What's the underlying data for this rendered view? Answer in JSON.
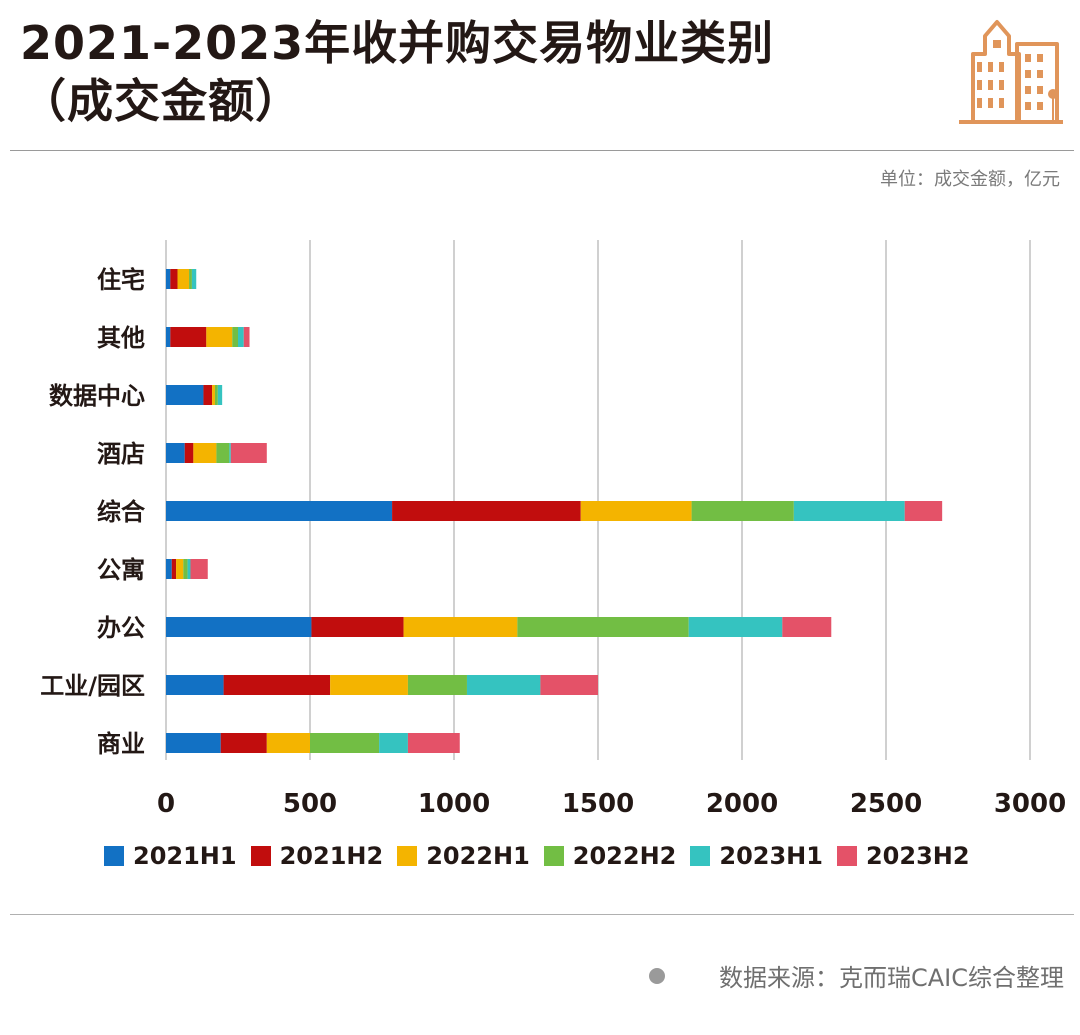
{
  "header": {
    "title_line1": "2021-2023年收并购交易物业类别",
    "title_line2": "（成交金额）",
    "unit": "单位：成交金额，亿元"
  },
  "footer": {
    "source": "数据来源：克而瑞CAIC综合整理"
  },
  "colors": {
    "accent": "#E0955A",
    "gridline": "#D0D0D0"
  },
  "chart_data": {
    "type": "bar",
    "orientation": "horizontal",
    "stacked": true,
    "title": "2021-2023年收并购交易物业类别（成交金额）",
    "xlabel": "",
    "ylabel": "",
    "xlim": [
      0,
      3000
    ],
    "xticks": [
      0,
      500,
      1000,
      1500,
      2000,
      2500,
      3000
    ],
    "grid": true,
    "legend_position": "bottom",
    "categories": [
      "住宅",
      "其他",
      "数据中心",
      "酒店",
      "综合",
      "公寓",
      "办公",
      "工业/园区",
      "商业"
    ],
    "series": [
      {
        "name": "2021H1",
        "color": "#1271C4",
        "values": [
          15,
          15,
          130,
          65,
          785,
          20,
          505,
          200,
          190
        ]
      },
      {
        "name": "2021H2",
        "color": "#C10D0D",
        "values": [
          25,
          125,
          30,
          30,
          655,
          15,
          320,
          370,
          160
        ]
      },
      {
        "name": "2022H1",
        "color": "#F4B400",
        "values": [
          40,
          90,
          10,
          80,
          385,
          25,
          395,
          270,
          150
        ]
      },
      {
        "name": "2022H2",
        "color": "#72BE44",
        "values": [
          10,
          20,
          10,
          45,
          355,
          15,
          595,
          205,
          240
        ]
      },
      {
        "name": "2023H1",
        "color": "#35C3C0",
        "values": [
          15,
          20,
          15,
          5,
          385,
          10,
          325,
          255,
          100
        ]
      },
      {
        "name": "2023H2",
        "color": "#E45268",
        "values": [
          0,
          20,
          0,
          125,
          130,
          60,
          170,
          200,
          180
        ]
      }
    ]
  }
}
